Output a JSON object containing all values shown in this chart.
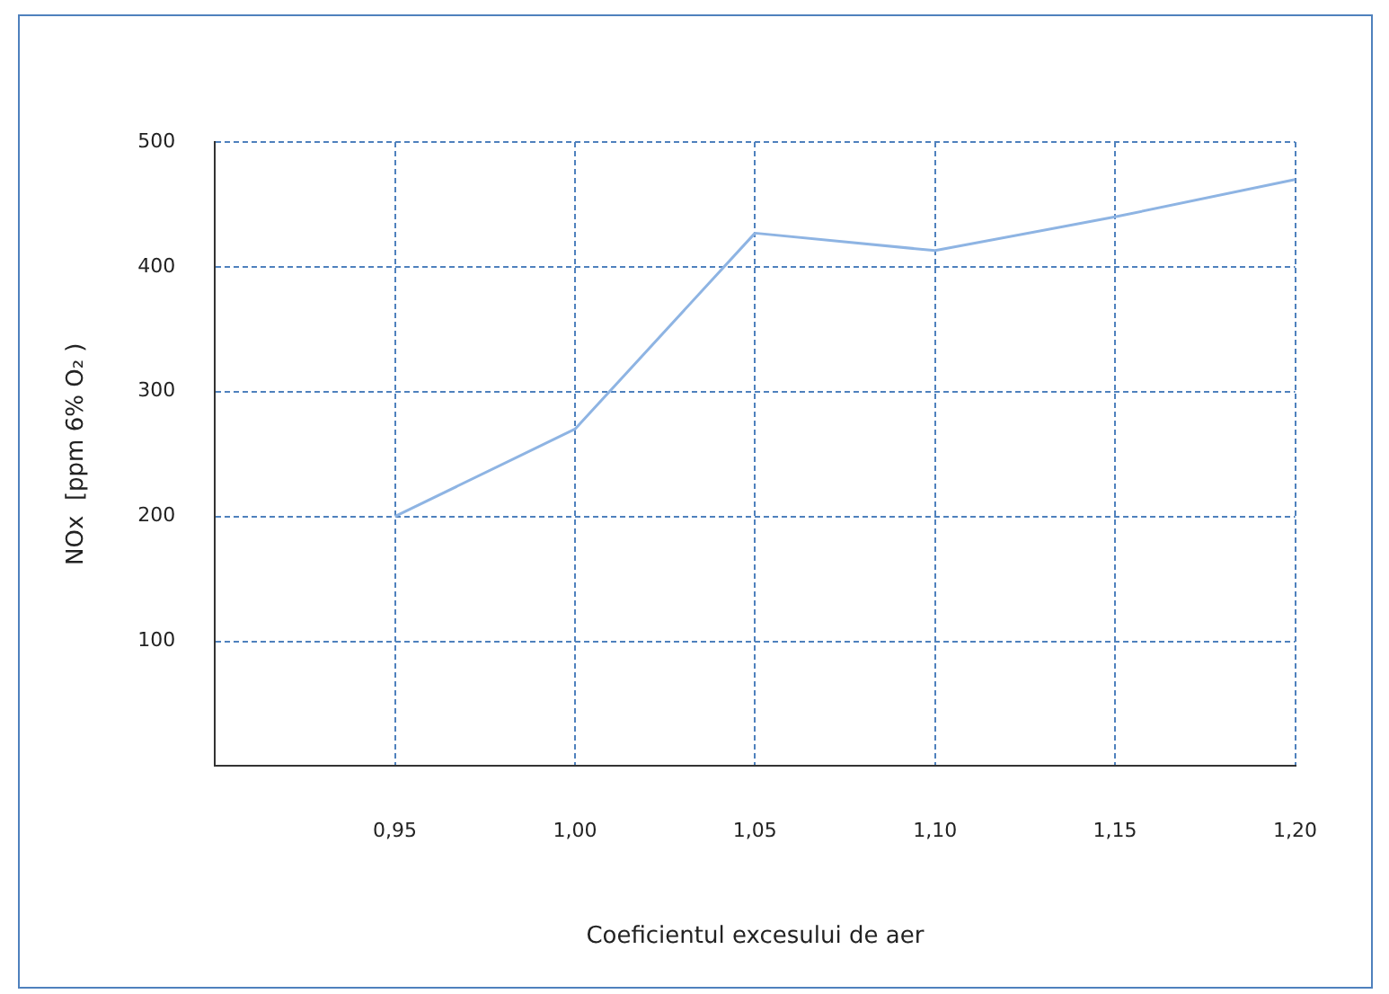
{
  "chart_data": {
    "type": "line",
    "xlabel": "Coeficientul excesului de aer",
    "ylabel": "NOx  [ppm 6% O₂ )",
    "x": [
      0.95,
      1.0,
      1.05,
      1.1,
      1.15,
      1.2
    ],
    "series": [
      {
        "color": "#8eb4e3",
        "values": [
          200,
          270,
          427,
          413,
          440,
          470
        ]
      }
    ],
    "xlim": [
      0.9,
      1.2
    ],
    "xticks": [
      {
        "value": 0.95,
        "label": "0,95"
      },
      {
        "value": 1.0,
        "label": "1,00"
      },
      {
        "value": 1.05,
        "label": "1,05"
      },
      {
        "value": 1.1,
        "label": "1,10"
      },
      {
        "value": 1.15,
        "label": "1,15"
      },
      {
        "value": 1.2,
        "label": "1,20"
      }
    ],
    "ylim": [
      0,
      500
    ],
    "yticks": [
      100,
      200,
      300,
      400,
      500
    ],
    "grid": true,
    "legend": false,
    "marker": "none",
    "line_style": "solid"
  }
}
